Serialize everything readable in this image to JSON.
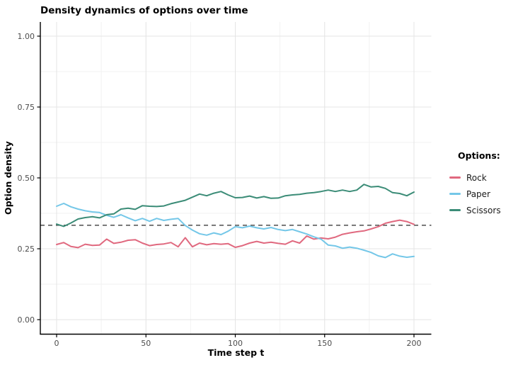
{
  "chart_data": {
    "type": "line",
    "title": "Density dynamics of options over time",
    "xlabel": "Time step t",
    "ylabel": "Option density",
    "legend_title": "Options:",
    "legend_position": "right",
    "grid": "major and minor, light gray on white panel",
    "xlim": [
      0,
      200
    ],
    "ylim": [
      0,
      1
    ],
    "x_ticks": [
      0,
      50,
      100,
      150,
      200
    ],
    "x_tick_labels": [
      "0",
      "50",
      "100",
      "150",
      "200"
    ],
    "x_minor_ticks": [
      25,
      75,
      125,
      175
    ],
    "y_ticks": [
      0,
      0.25,
      0.5,
      0.75,
      1
    ],
    "y_tick_labels": [
      "0.00",
      "0.25",
      "0.50",
      "0.75",
      "1.00"
    ],
    "y_minor_ticks": [
      0.125,
      0.375,
      0.625,
      0.875
    ],
    "reference_line": {
      "y": 0.333,
      "style": "dashed",
      "color": "#5b5b5b"
    },
    "x": [
      0,
      4,
      8,
      12,
      16,
      20,
      24,
      28,
      32,
      36,
      40,
      44,
      48,
      52,
      56,
      60,
      64,
      68,
      72,
      76,
      80,
      84,
      88,
      92,
      96,
      100,
      104,
      108,
      112,
      116,
      120,
      124,
      128,
      132,
      136,
      140,
      144,
      148,
      152,
      156,
      160,
      164,
      168,
      172,
      176,
      180,
      184,
      188,
      192,
      196,
      200
    ],
    "series": [
      {
        "name": "Rock",
        "color": "#E0697F",
        "values": [
          0.265,
          0.272,
          0.258,
          0.254,
          0.266,
          0.262,
          0.263,
          0.284,
          0.269,
          0.273,
          0.28,
          0.282,
          0.27,
          0.261,
          0.265,
          0.267,
          0.272,
          0.257,
          0.289,
          0.257,
          0.27,
          0.264,
          0.268,
          0.266,
          0.268,
          0.255,
          0.261,
          0.27,
          0.276,
          0.27,
          0.273,
          0.269,
          0.266,
          0.278,
          0.27,
          0.295,
          0.284,
          0.288,
          0.285,
          0.291,
          0.301,
          0.306,
          0.31,
          0.313,
          0.32,
          0.328,
          0.34,
          0.346,
          0.351,
          0.346,
          0.336
        ]
      },
      {
        "name": "Paper",
        "color": "#74C7E8",
        "values": [
          0.4,
          0.41,
          0.398,
          0.39,
          0.384,
          0.38,
          0.378,
          0.368,
          0.361,
          0.37,
          0.359,
          0.349,
          0.357,
          0.347,
          0.357,
          0.35,
          0.354,
          0.357,
          0.332,
          0.316,
          0.303,
          0.298,
          0.306,
          0.3,
          0.312,
          0.328,
          0.324,
          0.33,
          0.324,
          0.32,
          0.325,
          0.318,
          0.314,
          0.318,
          0.31,
          0.302,
          0.292,
          0.284,
          0.263,
          0.26,
          0.252,
          0.256,
          0.252,
          0.245,
          0.237,
          0.225,
          0.219,
          0.232,
          0.224,
          0.22,
          0.223
        ]
      },
      {
        "name": "Scissors",
        "color": "#3B8C77",
        "values": [
          0.337,
          0.329,
          0.341,
          0.355,
          0.36,
          0.363,
          0.359,
          0.37,
          0.373,
          0.39,
          0.393,
          0.389,
          0.402,
          0.4,
          0.399,
          0.401,
          0.409,
          0.415,
          0.421,
          0.432,
          0.443,
          0.437,
          0.446,
          0.452,
          0.44,
          0.43,
          0.431,
          0.436,
          0.429,
          0.434,
          0.428,
          0.429,
          0.437,
          0.44,
          0.442,
          0.446,
          0.448,
          0.452,
          0.457,
          0.452,
          0.457,
          0.452,
          0.457,
          0.477,
          0.468,
          0.47,
          0.463,
          0.448,
          0.445,
          0.437,
          0.45
        ]
      }
    ],
    "style": {
      "axis_line_color": "#000000",
      "tick_label_color": "#4d4d4d",
      "major_grid_color": "#e4e4e4",
      "minor_grid_color": "#f1f1f1",
      "line_width": 2
    }
  }
}
